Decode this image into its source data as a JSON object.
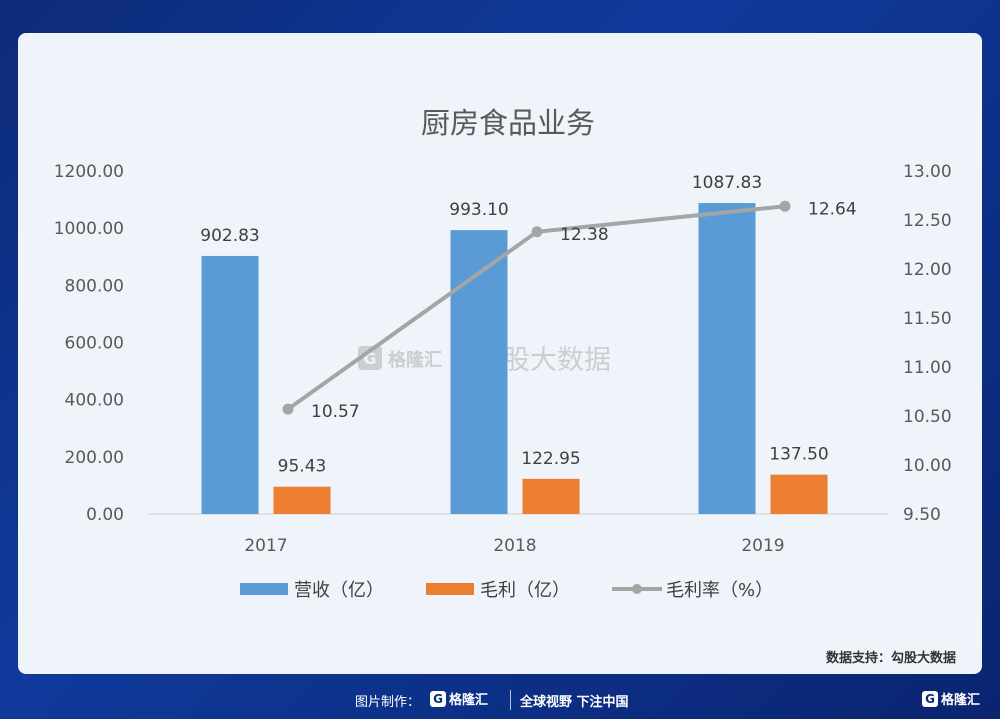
{
  "chart_data": {
    "type": "bar",
    "title": "厨房食品业务",
    "categories": [
      "2017",
      "2018",
      "2019"
    ],
    "series": [
      {
        "name": "营收（亿）",
        "type": "bar",
        "axis": "left",
        "color": "#5b9bd5",
        "values": [
          902.83,
          993.1,
          1087.83
        ],
        "labels": [
          "902.83",
          "993.10",
          "1087.83"
        ]
      },
      {
        "name": "毛利（亿）",
        "type": "bar",
        "axis": "left",
        "color": "#ed7d31",
        "values": [
          95.43,
          122.95,
          137.5
        ],
        "labels": [
          "95.43",
          "122.95",
          "137.50"
        ]
      },
      {
        "name": "毛利率（%）",
        "type": "line",
        "axis": "right",
        "color": "#a5a5a5",
        "values": [
          10.57,
          12.38,
          12.64
        ],
        "labels": [
          "10.57",
          "12.38",
          "12.64"
        ]
      }
    ],
    "y_left": {
      "min": 0,
      "max": 1200,
      "step": 200,
      "tick_labels": [
        "0.00",
        "200.00",
        "400.00",
        "600.00",
        "800.00",
        "1000.00",
        "1200.00"
      ]
    },
    "y_right": {
      "min": 9.5,
      "max": 13.0,
      "step": 0.5,
      "tick_labels": [
        "9.50",
        "10.00",
        "10.50",
        "11.00",
        "11.50",
        "12.00",
        "12.50",
        "13.00"
      ]
    },
    "legend_position": "bottom",
    "grid": false
  },
  "watermark": {
    "brand": "格隆汇",
    "sub": "勾股大数据"
  },
  "source_note": "数据支持：勾股大数据",
  "footer": {
    "made_by": "图片制作：",
    "brand": "格隆汇",
    "slogan": "全球视野 下注中国",
    "corner_brand": "格隆汇",
    "logo_letter": "G"
  }
}
